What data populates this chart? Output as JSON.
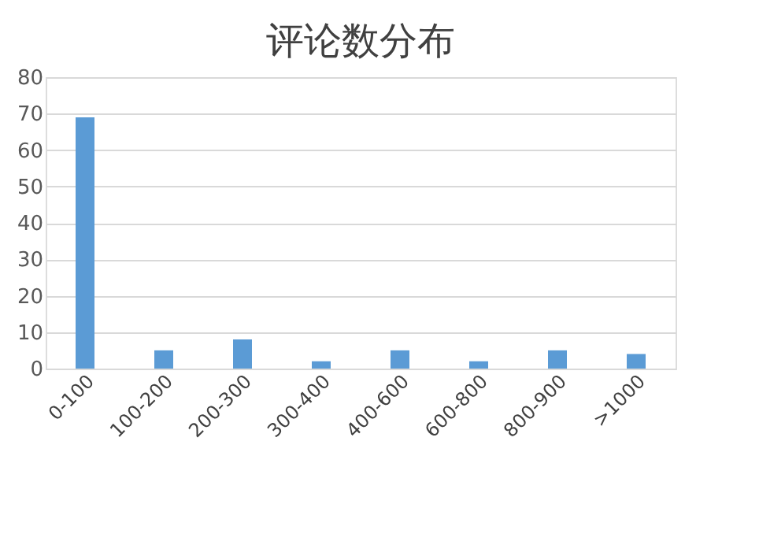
{
  "chart_data": {
    "type": "bar",
    "title": "评论数分布",
    "categories": [
      "0-100",
      "100-200",
      "200-300",
      "300-400",
      "400-600",
      "600-800",
      "800-900",
      ">1000"
    ],
    "values": [
      69,
      5,
      8,
      2,
      5,
      2,
      5,
      4
    ],
    "color": "#5b9bd5",
    "ylim": [
      0,
      80
    ],
    "yticks": [
      0,
      10,
      20,
      30,
      40,
      50,
      60,
      70,
      80
    ],
    "grid": "y"
  }
}
